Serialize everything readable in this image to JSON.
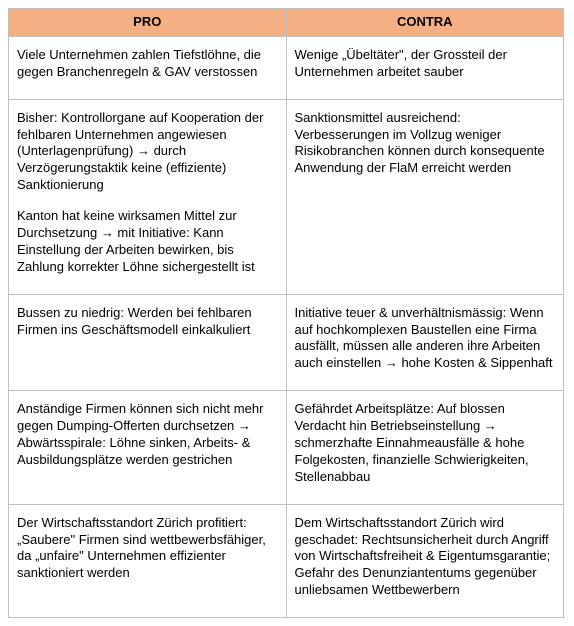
{
  "table": {
    "header": {
      "pro": "PRO",
      "contra": "CONTRA"
    },
    "rows": [
      {
        "pro": [
          "Viele Unternehmen zahlen Tiefstlöhne, die gegen Branchenregeln & GAV verstossen"
        ],
        "contra": [
          "Wenige „Übeltäter\", der Grossteil der Unternehmen arbeitet sauber"
        ]
      },
      {
        "pro": [
          "Bisher: Kontrollorgane auf Kooperation der fehlbaren Unternehmen angewiesen (Unterlagenprüfung) → durch Verzögerungstaktik keine (effiziente) Sanktionierung",
          "Kanton hat keine wirksamen Mittel zur Durchsetzung → mit Initiative: Kann Einstellung der Arbeiten bewirken, bis Zahlung korrekter Löhne sichergestellt ist"
        ],
        "contra": [
          "Sanktionsmittel ausreichend: Verbesserungen im Vollzug weniger Risikobranchen können durch konsequente Anwendung der FlaM erreicht werden"
        ]
      },
      {
        "pro": [
          "Bussen zu niedrig: Werden bei fehlbaren Firmen ins Geschäftsmodell einkalkuliert"
        ],
        "contra": [
          "Initiative teuer & unverhältnismässig: Wenn auf hochkomplexen Baustellen eine Firma ausfällt, müssen alle anderen ihre Arbeiten auch einstellen → hohe Kosten & Sippenhaft"
        ]
      },
      {
        "pro": [
          "Anständige Firmen können sich nicht mehr gegen Dumping-Offerten durchsetzen → Abwärtsspirale: Löhne sinken, Arbeits- & Ausbildungsplätze werden gestrichen"
        ],
        "contra": [
          "Gefährdet Arbeitsplätze: Auf blossen Verdacht hin Betriebseinstellung → schmerzhafte Einnahmeausfälle & hohe Folgekosten, finanzielle Schwierigkeiten, Stellenabbau"
        ]
      },
      {
        "pro": [
          "Der Wirtschaftsstandort Zürich profitiert: „Saubere\" Firmen sind wettbewerbsfähiger, da „unfaire\" Unternehmen effizienter sanktioniert werden"
        ],
        "contra": [
          "Dem Wirtschaftsstandort Zürich wird geschadet: Rechtsunsicherheit durch Angriff von Wirtschaftsfreiheit & Eigentumsgarantie; Gefahr des Denunziantentums gegenüber unliebsamen Wettbewerbern"
        ]
      }
    ],
    "colors": {
      "header_bg": "#f4b083",
      "border": "#bfbfbf",
      "text": "#000000",
      "bg": "#ffffff"
    }
  }
}
